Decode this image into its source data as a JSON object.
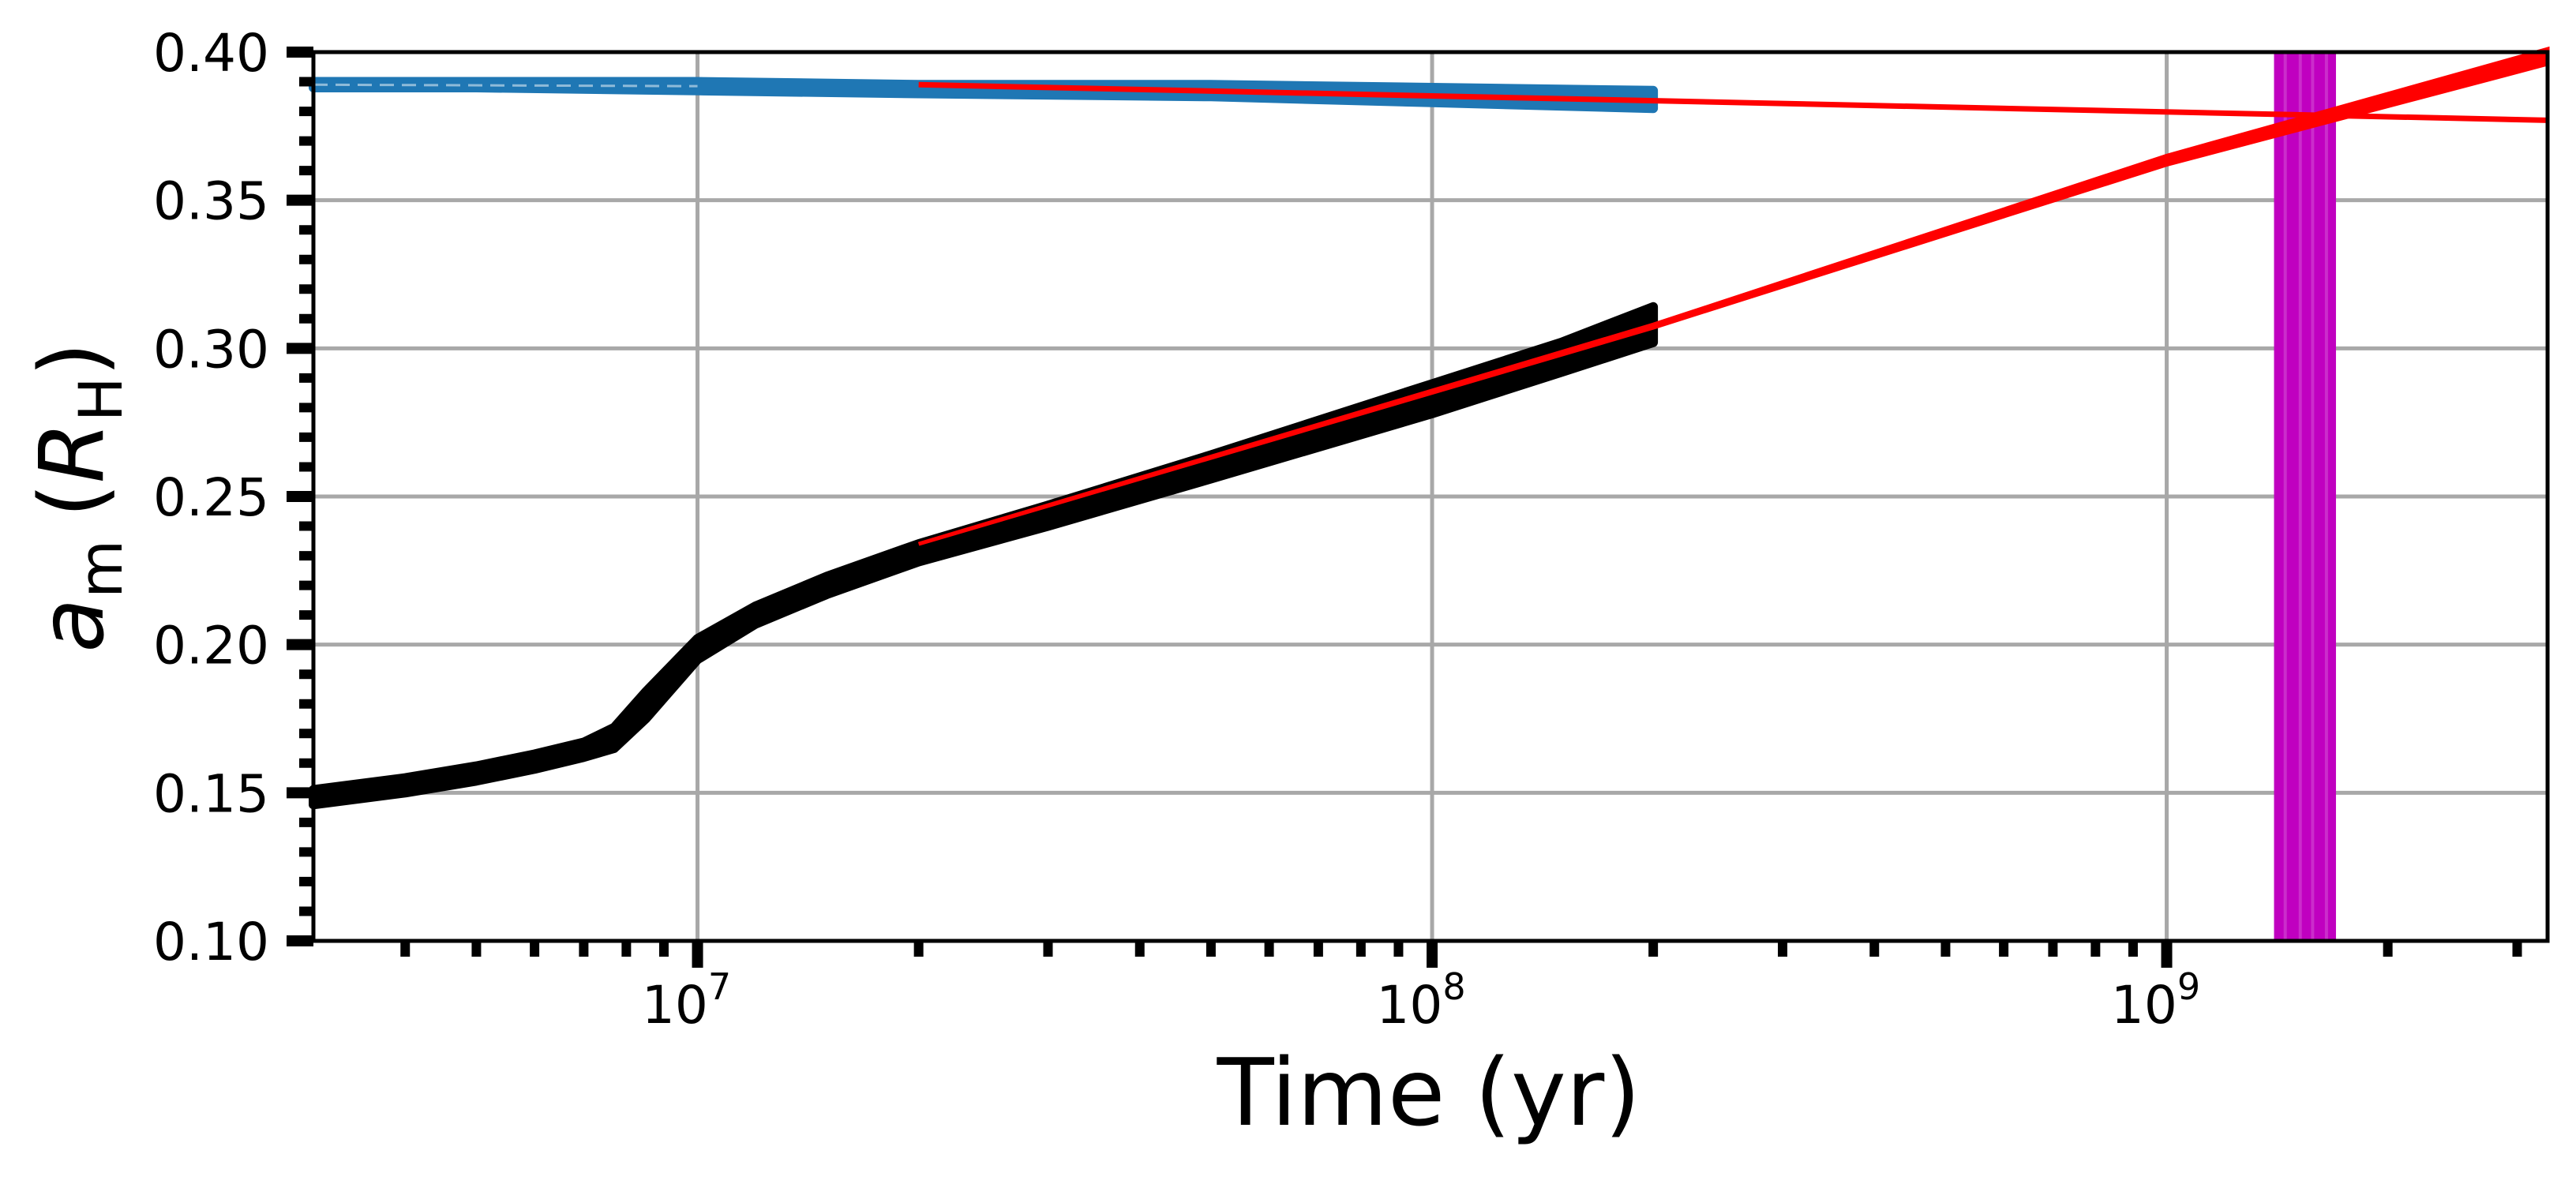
{
  "chart_data": {
    "type": "line",
    "xscale": "log",
    "xlim": [
      3000000,
      3300000000
    ],
    "ylim": [
      0.1,
      0.4
    ],
    "grid": true,
    "xlabel": "Time (yr)",
    "ylabel": {
      "symbol": "a",
      "sub": "m",
      "unit_symbol": "R",
      "unit_sub": "H"
    },
    "yticks": [
      {
        "value": 0.1,
        "label": "0.10"
      },
      {
        "value": 0.15,
        "label": "0.15"
      },
      {
        "value": 0.2,
        "label": "0.20"
      },
      {
        "value": 0.25,
        "label": "0.25"
      },
      {
        "value": 0.3,
        "label": "0.30"
      },
      {
        "value": 0.35,
        "label": "0.35"
      },
      {
        "value": 0.4,
        "label": "0.40"
      }
    ],
    "xticks": [
      {
        "value": 10000000,
        "base": "10",
        "exp": "7"
      },
      {
        "value": 100000000,
        "base": "10",
        "exp": "8"
      },
      {
        "value": 1000000000,
        "base": "10",
        "exp": "9"
      }
    ],
    "series": [
      {
        "style": "band",
        "color": "#1f77b4",
        "x": [
          3000000,
          5000000,
          10000000,
          20000000,
          50000000,
          100000000,
          200000000
        ],
        "y_low": [
          0.388,
          0.388,
          0.387,
          0.386,
          0.385,
          0.383,
          0.381
        ],
        "y_high": [
          0.39,
          0.39,
          0.39,
          0.389,
          0.389,
          0.388,
          0.387
        ]
      },
      {
        "style": "band",
        "color": "#000000",
        "x": [
          3000000,
          4000000,
          5000000,
          6000000,
          7000000,
          7700000,
          8500000,
          10000000,
          12000000,
          15000000,
          20000000,
          30000000,
          50000000,
          100000000,
          150000000,
          200000000
        ],
        "y_low": [
          0.146,
          0.15,
          0.154,
          0.158,
          0.162,
          0.165,
          0.175,
          0.195,
          0.207,
          0.217,
          0.228,
          0.24,
          0.256,
          0.278,
          0.292,
          0.302
        ],
        "y_high": [
          0.151,
          0.155,
          0.159,
          0.163,
          0.167,
          0.172,
          0.184,
          0.202,
          0.213,
          0.223,
          0.234,
          0.247,
          0.264,
          0.288,
          0.302,
          0.314
        ]
      },
      {
        "style": "line",
        "color": "#ff0000",
        "x": [
          20000000,
          3300000000
        ],
        "y": [
          0.389,
          0.377
        ]
      },
      {
        "style": "wedge",
        "color": "#ff0000",
        "x": [
          20000000,
          200000000,
          1000000000,
          3300000000
        ],
        "y_low": [
          0.234,
          0.307,
          0.362,
          0.396
        ],
        "y_high": [
          0.234,
          0.308,
          0.365,
          0.401
        ]
      }
    ],
    "shaded_span": {
      "x": [
        1400000000,
        1700000000
      ],
      "color": "#c000c0"
    },
    "span_lines": [
      1450000000,
      1520000000,
      1580000000,
      1650000000
    ]
  }
}
